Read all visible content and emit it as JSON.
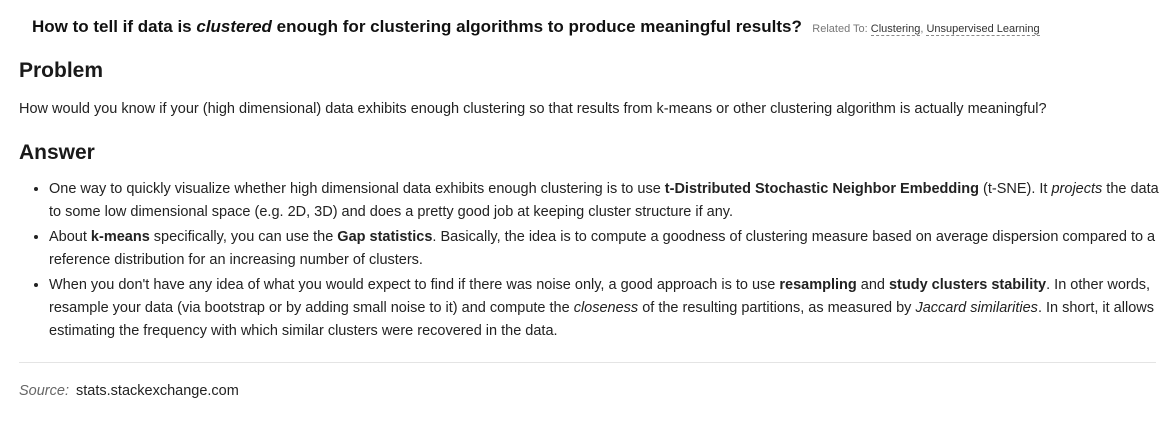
{
  "question": {
    "title_part1": "How to tell if data is ",
    "title_emph": "clustered",
    "title_part2": " enough for clustering algorithms to produce meaningful results?",
    "related_label": "Related To: ",
    "related_tags": [
      "Clustering",
      "Unsupervised Learning"
    ],
    "related_sep": ", "
  },
  "problem": {
    "heading": "Problem",
    "text": "How would you know if your (high dimensional) data exhibits enough clustering so that results from k-means or other clustering algorithm is actually meaningful?"
  },
  "answer": {
    "heading": "Answer",
    "item1": {
      "t1": "One way to quickly visualize whether high dimensional data exhibits enough clustering is to use ",
      "b1": "t-Distributed Stochastic Neighbor Embedding",
      "t2": " (t-SNE). It ",
      "i1": "projects",
      "t3": " the data to some low dimensional space (e.g. 2D, 3D) and does a pretty good job at keeping cluster structure if any."
    },
    "item2": {
      "t1": "About ",
      "b1": "k-means",
      "t2": " specifically, you can use the ",
      "b2": "Gap statistics",
      "t3": ". Basically, the idea is to compute a goodness of clustering measure based on average dispersion compared to a reference distribution for an increasing number of clusters."
    },
    "item3": {
      "t1": "When you don't have any idea of what you would expect to find if there was noise only, a good approach is to use ",
      "b1": "resampling",
      "t2": " and ",
      "b2": "study clusters stability",
      "t3": ". In other words, resample your data (via bootstrap or by adding small noise to it) and compute the ",
      "i1": "closeness",
      "t4": " of the resulting partitions, as measured by ",
      "i2": "Jaccard similarities",
      "t5": ". In short, it allows estimating the frequency with which similar clusters were recovered in the data."
    }
  },
  "source": {
    "label": "Source:",
    "link": "stats.stackexchange.com"
  }
}
